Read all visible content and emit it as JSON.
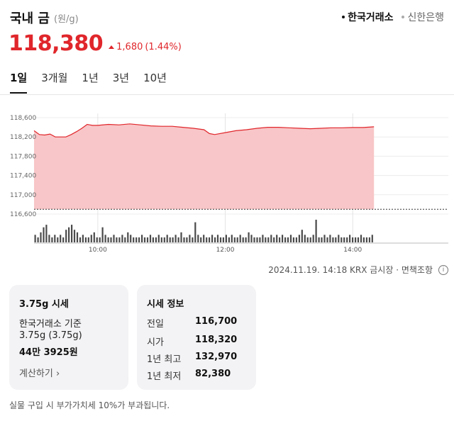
{
  "header": {
    "title": "국내 금",
    "unit": "(원/g)",
    "sources": [
      {
        "label": "한국거래소",
        "active": true
      },
      {
        "label": "신한은행",
        "active": false
      }
    ]
  },
  "price": {
    "value": "118,380",
    "change": "1,680",
    "change_pct": "(1.44%)",
    "direction": "up",
    "color": "#e0262b"
  },
  "tabs": [
    "1일",
    "3개월",
    "1년",
    "3년",
    "10년"
  ],
  "active_tab": "1일",
  "chart_data": {
    "type": "area",
    "y_ticks": [
      "118,600",
      "118,200",
      "117,800",
      "117,400",
      "117,000",
      "116,600"
    ],
    "x_ticks": [
      "10:00",
      "12:00",
      "14:00"
    ],
    "ylim": [
      116600,
      118600
    ],
    "baseline": 116700,
    "series": [
      {
        "x": [
          "09:00",
          "09:05",
          "09:10",
          "09:15",
          "09:20",
          "09:25",
          "09:30",
          "09:35",
          "09:40",
          "09:45",
          "09:50",
          "09:55",
          "10:00",
          "10:10",
          "10:20",
          "10:30",
          "10:40",
          "10:50",
          "11:00",
          "11:10",
          "11:20",
          "11:30",
          "11:40",
          "11:45",
          "11:50",
          "12:00",
          "12:10",
          "12:20",
          "12:30",
          "12:40",
          "12:50",
          "13:00",
          "13:10",
          "13:20",
          "13:30",
          "13:40",
          "13:50",
          "14:00",
          "14:10",
          "14:20"
        ],
        "values": [
          118330,
          118250,
          118240,
          118260,
          118200,
          118200,
          118200,
          118250,
          118310,
          118380,
          118460,
          118440,
          118440,
          118460,
          118450,
          118470,
          118450,
          118430,
          118420,
          118420,
          118400,
          118380,
          118350,
          118270,
          118250,
          118290,
          118330,
          118350,
          118380,
          118400,
          118400,
          118390,
          118380,
          118370,
          118380,
          118390,
          118390,
          118395,
          118395,
          118410
        ]
      }
    ],
    "volume": [
      3,
      2,
      4,
      6,
      7,
      3,
      2,
      3,
      2,
      3,
      2,
      5,
      6,
      7,
      5,
      4,
      2,
      3,
      2,
      2,
      3,
      4,
      2,
      2,
      6,
      3,
      2,
      2,
      3,
      2,
      2,
      3,
      2,
      4,
      3,
      2,
      2,
      2,
      3,
      2,
      2,
      3,
      2,
      2,
      3,
      2,
      2,
      3,
      2,
      2,
      3,
      2,
      4,
      2,
      2,
      3,
      2,
      8,
      3,
      2,
      3,
      2,
      2,
      3,
      2,
      3,
      2,
      2,
      3,
      2,
      3,
      2,
      2,
      3,
      2,
      2,
      4,
      3,
      2,
      2,
      2,
      3,
      2,
      2,
      3,
      2,
      3,
      2,
      3,
      2,
      2,
      3,
      2,
      2,
      3,
      5,
      3,
      2,
      2,
      3,
      9,
      2,
      2,
      3,
      2,
      3,
      2,
      2,
      3,
      2,
      2,
      2,
      3,
      2,
      2,
      2,
      3,
      2,
      2,
      2,
      3
    ]
  },
  "chart_footnote": "2024.11.19. 14:18 KRX 금시장 · 면책조항",
  "card_market": {
    "title": "3.75g 시세",
    "line1": "한국거래소 기준",
    "line2": "3.75g (3.75g)",
    "line3": "44만 3925원",
    "link": "계산하기"
  },
  "card_info": {
    "title": "시세 정보",
    "rows": [
      {
        "label": "전일",
        "value": "116,700"
      },
      {
        "label": "시가",
        "value": "118,320"
      },
      {
        "label": "1년 최고",
        "value": "132,970"
      },
      {
        "label": "1년 최저",
        "value": "82,380"
      }
    ]
  },
  "note": "실물 구입 시 부가가치세 10%가 부과됩니다."
}
